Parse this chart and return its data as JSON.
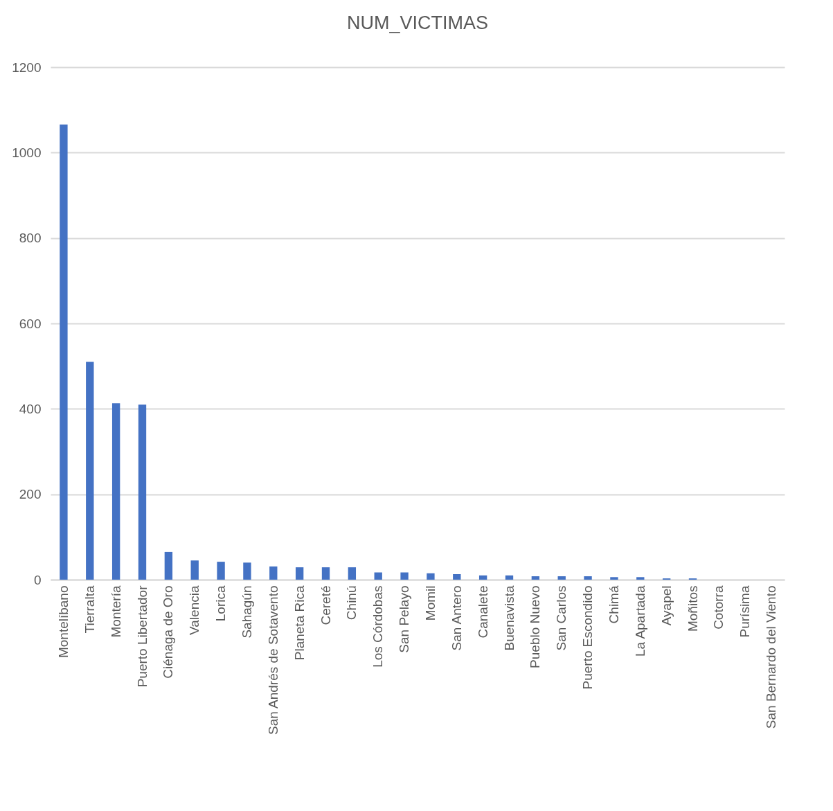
{
  "chart_data": {
    "type": "bar",
    "title": "NUM_VICTIMAS",
    "categories": [
      "Montelíbano",
      "Tierralta",
      "Montería",
      "Puerto Libertador",
      "Ciénaga de Oro",
      "Valencia",
      "Lorica",
      "Sahagún",
      "San Andrés de Sotavento",
      "Planeta Rica",
      "Cereté",
      "Chinú",
      "Los Córdobas",
      "San Pelayo",
      "Momil",
      "San Antero",
      "Canalete",
      "Buenavista",
      "Pueblo Nuevo",
      "San Carlos",
      "Puerto Escondido",
      "Chimá",
      "La Apartada",
      "Ayapel",
      "Moñitos",
      "Cotorra",
      "Purísima",
      "San Bernardo del Viento"
    ],
    "values": [
      1066,
      510,
      413,
      410,
      65,
      45,
      42,
      40,
      31,
      29,
      29,
      29,
      17,
      17,
      15,
      13,
      10,
      10,
      8,
      8,
      8,
      6,
      6,
      3,
      3,
      0,
      0,
      0
    ],
    "color": "#4472c4",
    "ylim": [
      0,
      1200
    ],
    "yticks": [
      0,
      200,
      400,
      600,
      800,
      1000,
      1200
    ],
    "grid": "y"
  }
}
